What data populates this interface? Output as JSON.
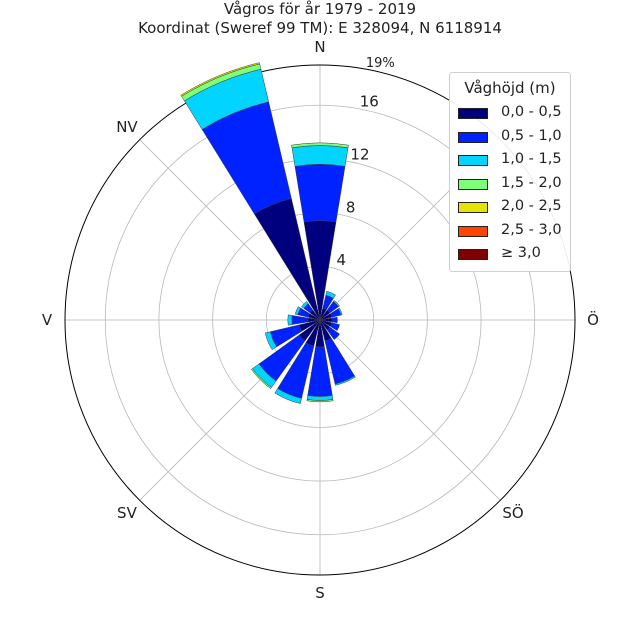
{
  "chart_data": {
    "type": "polar-stacked-bar",
    "title": "Vågros för år 1979 - 2019",
    "subtitle": "Koordinat (Sweref 99 TM): E 328094, N 6118914",
    "directions": [
      "N",
      "NV",
      "V",
      "SV",
      "S",
      "SÖ",
      "Ö"
    ],
    "r_ticks": [
      "4",
      "8",
      "12",
      "16"
    ],
    "r_max_label": "19%",
    "r_max": 19,
    "legend_title": "Våghöjd (m)",
    "legend_position": "top-right",
    "grid": true,
    "sector_angles_deg": [
      0,
      22.5,
      45,
      67.5,
      90,
      112.5,
      135,
      157.5,
      180,
      202.5,
      225,
      247.5,
      270,
      292.5,
      315,
      337.5
    ],
    "series": [
      {
        "name": "0,0 - 0,5",
        "color": "#00007f",
        "values": [
          0.9,
          0.9,
          0.9,
          0.9,
          7.4,
          9.3,
          0.9,
          0.9,
          0.9,
          1.6,
          1.9,
          2.0,
          2.0,
          1.6,
          0.9,
          0.9
        ]
      },
      {
        "name": "0,5 - 1,0",
        "color": "#0022ff",
        "values": [
          0.4,
          0.7,
          0.8,
          1.0,
          4.2,
          7.4,
          0.6,
          0.8,
          1.2,
          2.2,
          3.7,
          4.0,
          3.7,
          3.3,
          0.9,
          0.6
        ]
      },
      {
        "name": "1,0 - 1,5",
        "color": "#00d4ff",
        "values": [
          0.0,
          0.1,
          0.1,
          0.3,
          1.4,
          2.5,
          0.2,
          0.2,
          0.3,
          0.4,
          0.6,
          0.4,
          0.3,
          0.1,
          0.0,
          0.0
        ]
      },
      {
        "name": "1,5 - 2,0",
        "color": "#7dff7a",
        "values": [
          0.0,
          0.0,
          0.0,
          0.0,
          0.2,
          0.4,
          0.0,
          0.0,
          0.0,
          0.0,
          0.1,
          0.0,
          0.1,
          0.0,
          0.0,
          0.0
        ]
      },
      {
        "name": "2,0 - 2,5",
        "color": "#e4e400",
        "values": [
          0.0,
          0.0,
          0.0,
          0.0,
          0.0,
          0.1,
          0.0,
          0.0,
          0.0,
          0.0,
          0.0,
          0.0,
          0.0,
          0.0,
          0.0,
          0.0
        ]
      },
      {
        "name": "2,5 - 3,0",
        "color": "#ff4400",
        "values": [
          0.0,
          0.0,
          0.0,
          0.0,
          0.0,
          0.0,
          0.0,
          0.0,
          0.0,
          0.0,
          0.0,
          0.0,
          0.0,
          0.0,
          0.0,
          0.0
        ]
      },
      {
        "name": "≥ 3,0",
        "color": "#7f0000",
        "values": [
          0.0,
          0.0,
          0.0,
          0.0,
          0.0,
          0.0,
          0.0,
          0.0,
          0.0,
          0.0,
          0.0,
          0.0,
          0.0,
          0.0,
          0.0,
          0.0
        ]
      }
    ]
  }
}
